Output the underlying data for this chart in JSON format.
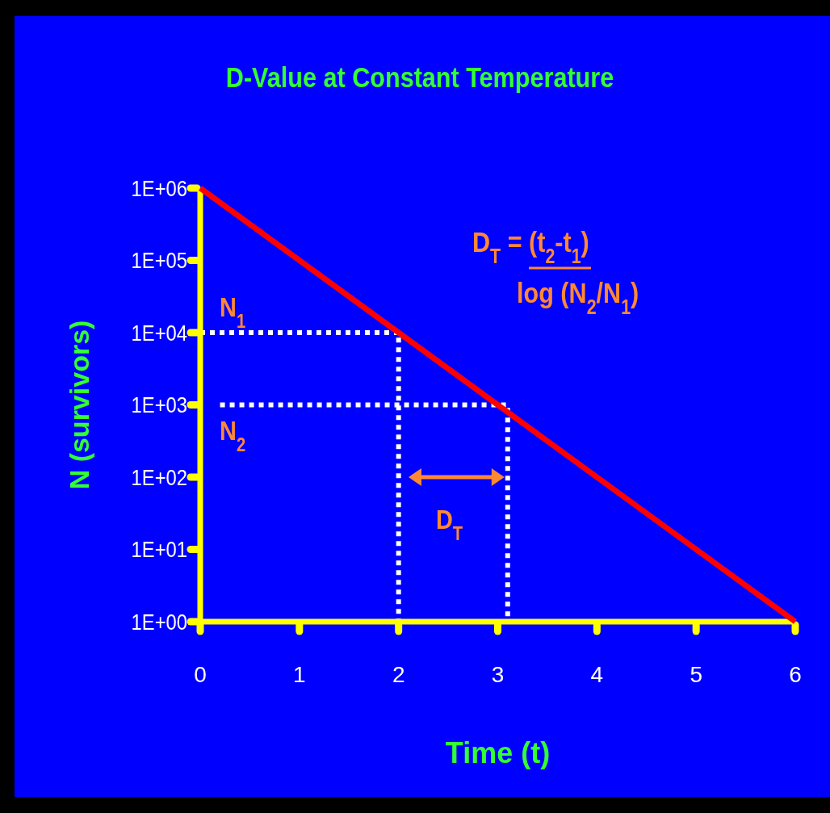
{
  "chart_data": {
    "type": "line",
    "title": "D-Value at Constant Temperature",
    "xlabel": "Time (t)",
    "ylabel": "N (survivors)",
    "log": "y",
    "grid": false,
    "xlim": [
      0,
      6
    ],
    "xticks": [
      0,
      1,
      2,
      3,
      4,
      5,
      6
    ],
    "ylim": [
      1,
      1000000
    ],
    "yticks": [
      {
        "value": 1,
        "label": "1E+00"
      },
      {
        "value": 10,
        "label": "1E+01"
      },
      {
        "value": 100,
        "label": "1E+02"
      },
      {
        "value": 1000,
        "label": "1E+03"
      },
      {
        "value": 10000,
        "label": "1E+04"
      },
      {
        "value": 100000,
        "label": "1E+05"
      },
      {
        "value": 1000000,
        "label": "1E+06"
      }
    ],
    "series": [
      {
        "color": "#ff0000",
        "line_style": "solid",
        "x": [
          0,
          6
        ],
        "values": [
          1000000,
          1
        ]
      },
      {
        "color": "#ffffff",
        "line_style": "dotted",
        "x": [
          0,
          2,
          2
        ],
        "values": [
          10000,
          10000,
          1
        ]
      },
      {
        "color": "#ffffff",
        "line_style": "dotted",
        "x": [
          0.2,
          3.1,
          3.1
        ],
        "values": [
          1000,
          1000,
          1
        ]
      }
    ],
    "annotations": [
      "D$_{T}$ = (t$_{2}$-t$_{1}$)",
      "log (N$_{2}$/N$_{1}$)",
      "N$_{1}$",
      "N$_{2}$",
      "D$_{T}$"
    ]
  }
}
